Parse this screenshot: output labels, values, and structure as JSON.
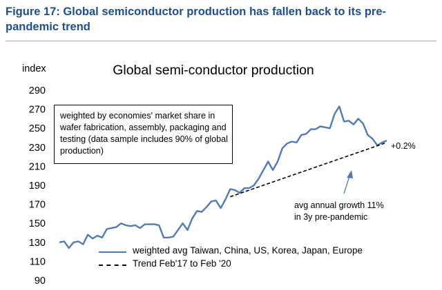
{
  "figure": {
    "title": "Figure 17: Global semiconductor production has fallen back to its pre-pandemic trend"
  },
  "chart_data": {
    "type": "line",
    "title": "Global semi-conductor production",
    "ylabel": "index",
    "xlabel": "",
    "ylim": [
      90,
      290
    ],
    "yticks": [
      90,
      110,
      130,
      150,
      170,
      190,
      210,
      230,
      250,
      270,
      290
    ],
    "grid": false,
    "legend_position": "bottom",
    "series": [
      {
        "name": "weighted avg Taiwan, China, US, Korea, Japan, Europe",
        "style": "solid",
        "color": "#4f7ab6",
        "values": [
          130,
          131,
          124,
          130,
          131,
          128,
          138,
          134,
          137,
          135,
          144,
          145,
          146,
          150,
          148,
          147,
          148,
          145,
          149,
          149,
          149,
          148,
          135,
          135,
          136,
          143,
          150,
          143,
          155,
          163,
          162,
          167,
          173,
          174,
          166,
          175,
          186,
          185,
          182,
          187,
          187,
          190,
          197,
          206,
          215,
          206,
          215,
          229,
          234,
          236,
          235,
          243,
          244,
          249,
          249,
          252,
          251,
          250,
          265,
          273,
          257,
          258,
          254,
          260,
          255,
          243,
          239,
          232,
          235,
          237
        ]
      },
      {
        "name": "Trend Feb'17 to Feb '20",
        "style": "dashed",
        "color": "#000000",
        "start_index": 36,
        "values": [
          178,
          235
        ]
      }
    ],
    "annotations": [
      {
        "text": "weighted by economies' market share in wafer fabrication, assembly, packaging and testing (data sample includes 90% of global production)"
      },
      {
        "text": "+0.2%"
      },
      {
        "text": "avg annual growth 11% in 3y pre-pandemic"
      }
    ]
  }
}
